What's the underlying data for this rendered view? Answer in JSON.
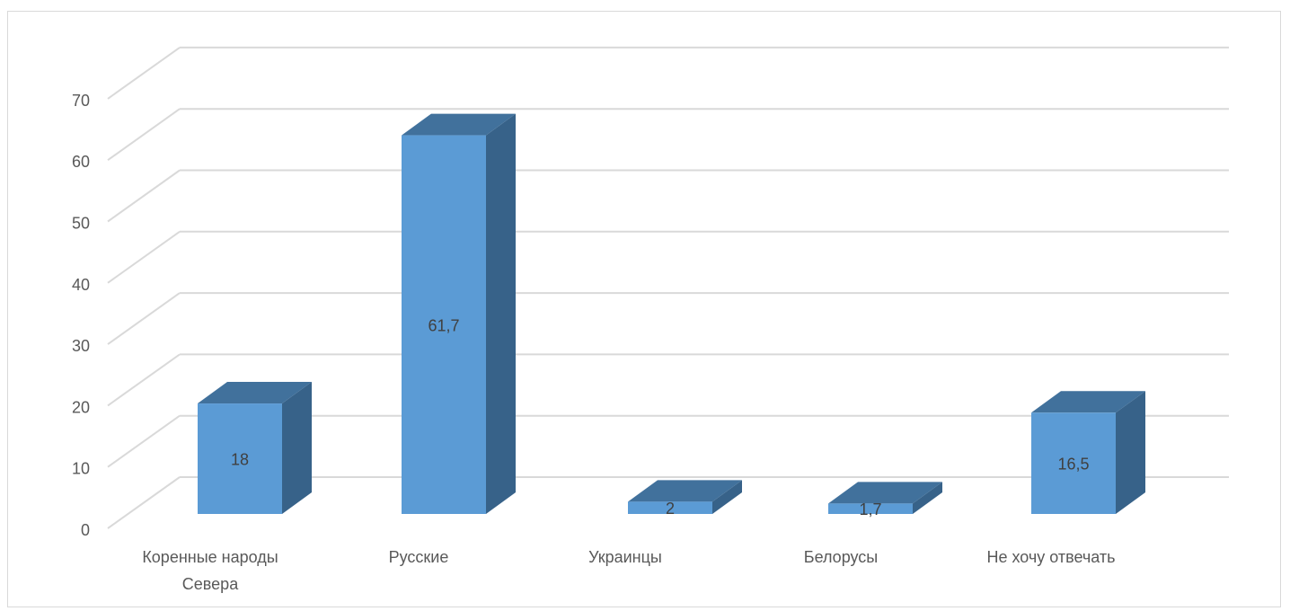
{
  "chart_data": {
    "type": "bar",
    "style": "3d-column",
    "categories": [
      "Коренные народы Севера",
      "Русские",
      "Украинцы",
      "Белорусы",
      "Не хочу отвечать"
    ],
    "category_label_lines": [
      [
        "Коренные народы",
        "Севера"
      ],
      [
        "Русские"
      ],
      [
        "Украинцы"
      ],
      [
        "Белорусы"
      ],
      [
        "Не хочу отвечать"
      ]
    ],
    "values": [
      18,
      61.7,
      2,
      1.7,
      16.5
    ],
    "data_labels": [
      "18",
      "61,7",
      "2",
      "1,7",
      "16,5"
    ],
    "y_ticks": [
      "0",
      "10",
      "20",
      "30",
      "40",
      "50",
      "60",
      "70"
    ],
    "ylim": [
      0,
      70
    ],
    "grid": true,
    "legend": "none",
    "title": "",
    "xlabel": "",
    "ylabel": "",
    "colors": {
      "bar_front": "#5b9bd5",
      "bar_top": "#41719c",
      "bar_side": "#376289",
      "gridline": "#d9d9d9",
      "tick_text": "#595959",
      "data_label_text": "#404040"
    }
  }
}
